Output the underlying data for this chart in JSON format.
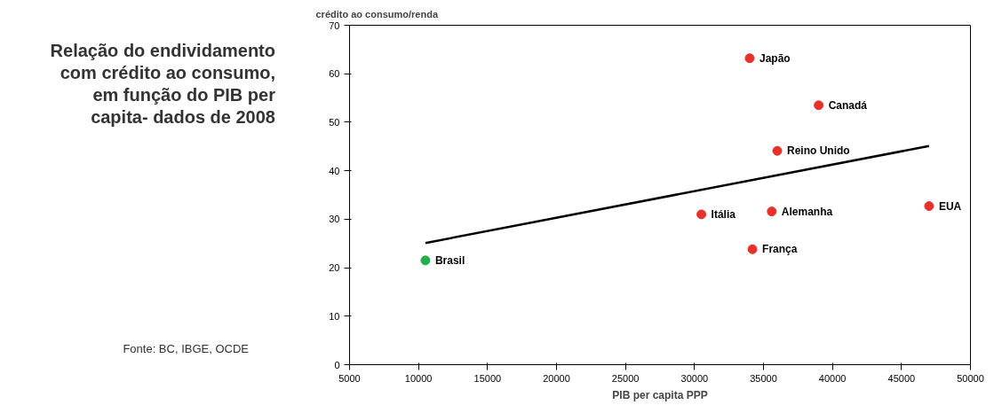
{
  "chart_data": {
    "type": "scatter",
    "title": "Relação do endividamento com crédito ao consumo, em função do PIB per capita- dados de 2008",
    "xlabel": "PIB per capita PPP",
    "ylabel": "crédito ao consumo/renda",
    "xlim": [
      5000,
      50000
    ],
    "xticks": [
      5000,
      10000,
      15000,
      20000,
      25000,
      30000,
      35000,
      40000,
      45000,
      50000
    ],
    "ylim": [
      0,
      70
    ],
    "yticks": [
      0,
      10,
      20,
      30,
      40,
      50,
      60,
      70
    ],
    "grid": false,
    "marker": "circle",
    "series": [
      {
        "x": [
          34000,
          39000,
          36000,
          30500,
          35600,
          47000,
          34200,
          10500
        ],
        "values": [
          63.2,
          53.5,
          44.1,
          31.0,
          31.6,
          32.7,
          23.8,
          21.5
        ],
        "colors": [
          "#e8312a",
          "#e8312a",
          "#e8312a",
          "#e8312a",
          "#e8312a",
          "#e8312a",
          "#e8312a",
          "#22b04a"
        ]
      },
      {
        "type": "line",
        "x": [
          10500,
          47000
        ],
        "values": [
          25.1,
          45.1
        ],
        "color": "#000000",
        "marker": "none"
      }
    ],
    "annotations": [
      {
        "text": "Japão",
        "x": 34000,
        "y": 63.2
      },
      {
        "text": "Canadá",
        "x": 39000,
        "y": 53.5
      },
      {
        "text": "Reino Unido",
        "x": 36000,
        "y": 44.1
      },
      {
        "text": "Itália",
        "x": 30500,
        "y": 31.0
      },
      {
        "text": "Alemanha",
        "x": 35600,
        "y": 31.6
      },
      {
        "text": "EUA",
        "x": 47000,
        "y": 32.7
      },
      {
        "text": "França",
        "x": 34200,
        "y": 23.8
      },
      {
        "text": "Brasil",
        "x": 10500,
        "y": 21.5
      },
      "Fonte: BC, IBGE, OCDE"
    ]
  }
}
